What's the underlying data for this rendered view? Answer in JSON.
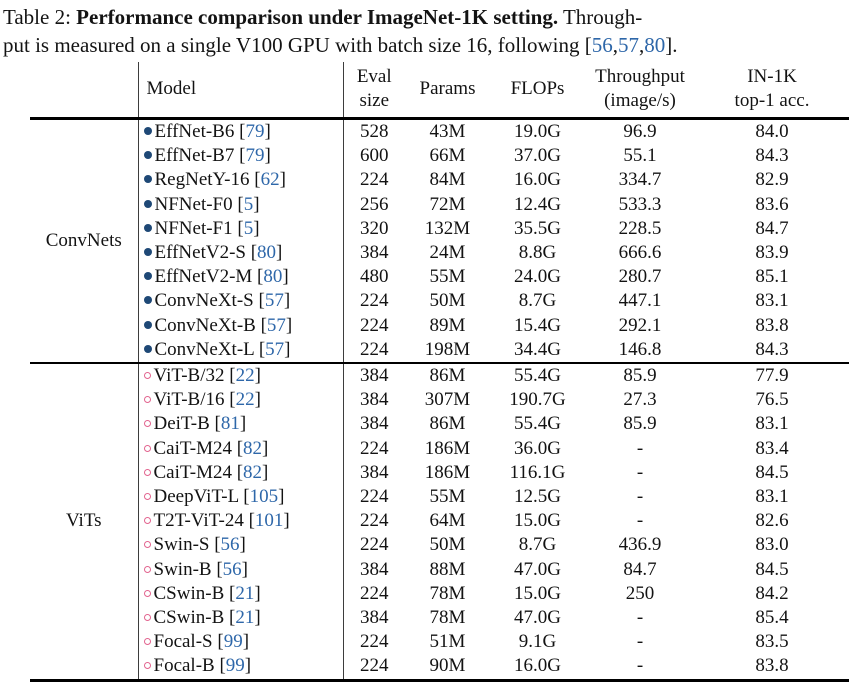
{
  "colors": {
    "citation_blue": "#2e67a9",
    "convnet_bullet": "#1e4876",
    "vit_circle": "#e2648f",
    "text": "#131313"
  },
  "caption": {
    "lines": [
      [
        {
          "t": "Table 2: ",
          "s": "normal"
        },
        {
          "t": "Performance comparison under ImageNet-1K setting.",
          "s": "bold"
        },
        {
          "t": " Through-",
          "s": "normal"
        }
      ],
      [
        {
          "t": "put is measured on a single V100 GPU with batch size 16, following ",
          "s": "normal"
        },
        {
          "t": "[",
          "s": "normal"
        },
        {
          "t": "56",
          "s": "cite"
        },
        {
          "t": ",",
          "s": "normal"
        },
        {
          "t": "57",
          "s": "cite"
        },
        {
          "t": ",",
          "s": "normal"
        },
        {
          "t": "80",
          "s": "cite"
        },
        {
          "t": "].",
          "s": "normal"
        }
      ]
    ]
  },
  "table": {
    "headers": {
      "group": [
        ""
      ],
      "model": [
        "Model"
      ],
      "eval": [
        "Eval",
        "size"
      ],
      "params": [
        "Params"
      ],
      "flops": [
        "FLOPs"
      ],
      "throughput": [
        "Throughput",
        "(image/s)"
      ],
      "acc": [
        "IN-1K",
        "top-1 acc."
      ]
    },
    "sections": [
      {
        "group": "ConvNets",
        "marker": "filled",
        "rows": [
          {
            "model": "EffNet-B6",
            "ref": "79",
            "eval": "528",
            "params": "43M",
            "flops": "19.0G",
            "throughput": "96.9",
            "acc": "84.0"
          },
          {
            "model": "EffNet-B7",
            "ref": "79",
            "eval": "600",
            "params": "66M",
            "flops": "37.0G",
            "throughput": "55.1",
            "acc": "84.3"
          },
          {
            "model": "RegNetY-16",
            "ref": "62",
            "eval": "224",
            "params": "84M",
            "flops": "16.0G",
            "throughput": "334.7",
            "acc": "82.9"
          },
          {
            "model": "NFNet-F0",
            "ref": "5",
            "eval": "256",
            "params": "72M",
            "flops": "12.4G",
            "throughput": "533.3",
            "acc": "83.6"
          },
          {
            "model": "NFNet-F1",
            "ref": "5",
            "eval": "320",
            "params": "132M",
            "flops": "35.5G",
            "throughput": "228.5",
            "acc": "84.7"
          },
          {
            "model": "EffNetV2-S",
            "ref": "80",
            "eval": "384",
            "params": "24M",
            "flops": "8.8G",
            "throughput": "666.6",
            "acc": "83.9"
          },
          {
            "model": "EffNetV2-M",
            "ref": "80",
            "eval": "480",
            "params": "55M",
            "flops": "24.0G",
            "throughput": "280.7",
            "acc": "85.1"
          },
          {
            "model": "ConvNeXt-S",
            "ref": "57",
            "eval": "224",
            "params": "50M",
            "flops": "8.7G",
            "throughput": "447.1",
            "acc": "83.1"
          },
          {
            "model": "ConvNeXt-B",
            "ref": "57",
            "eval": "224",
            "params": "89M",
            "flops": "15.4G",
            "throughput": "292.1",
            "acc": "83.8"
          },
          {
            "model": "ConvNeXt-L",
            "ref": "57",
            "eval": "224",
            "params": "198M",
            "flops": "34.4G",
            "throughput": "146.8",
            "acc": "84.3"
          }
        ]
      },
      {
        "group": "ViTs",
        "marker": "open",
        "rows": [
          {
            "model": "ViT-B/32",
            "ref": "22",
            "eval": "384",
            "params": "86M",
            "flops": "55.4G",
            "throughput": "85.9",
            "acc": "77.9"
          },
          {
            "model": "ViT-B/16",
            "ref": "22",
            "eval": "384",
            "params": "307M",
            "flops": "190.7G",
            "throughput": "27.3",
            "acc": "76.5"
          },
          {
            "model": "DeiT-B",
            "ref": "81",
            "eval": "384",
            "params": "86M",
            "flops": "55.4G",
            "throughput": "85.9",
            "acc": "83.1"
          },
          {
            "model": "CaiT-M24",
            "ref": "82",
            "eval": "224",
            "params": "186M",
            "flops": "36.0G",
            "throughput": "-",
            "acc": "83.4"
          },
          {
            "model": "CaiT-M24",
            "ref": "82",
            "eval": "384",
            "params": "186M",
            "flops": "116.1G",
            "throughput": "-",
            "acc": "84.5"
          },
          {
            "model": "DeepViT-L",
            "ref": "105",
            "eval": "224",
            "params": "55M",
            "flops": "12.5G",
            "throughput": "-",
            "acc": "83.1"
          },
          {
            "model": "T2T-ViT-24",
            "ref": "101",
            "eval": "224",
            "params": "64M",
            "flops": "15.0G",
            "throughput": "-",
            "acc": "82.6"
          },
          {
            "model": "Swin-S",
            "ref": "56",
            "eval": "224",
            "params": "50M",
            "flops": "8.7G",
            "throughput": "436.9",
            "acc": "83.0"
          },
          {
            "model": "Swin-B",
            "ref": "56",
            "eval": "384",
            "params": "88M",
            "flops": "47.0G",
            "throughput": "84.7",
            "acc": "84.5"
          },
          {
            "model": "CSwin-B",
            "ref": "21",
            "eval": "224",
            "params": "78M",
            "flops": "15.0G",
            "throughput": "250",
            "acc": "84.2"
          },
          {
            "model": "CSwin-B",
            "ref": "21",
            "eval": "384",
            "params": "78M",
            "flops": "47.0G",
            "throughput": "-",
            "acc": "85.4"
          },
          {
            "model": "Focal-S",
            "ref": "99",
            "eval": "224",
            "params": "51M",
            "flops": "9.1G",
            "throughput": "-",
            "acc": "83.5"
          },
          {
            "model": "Focal-B",
            "ref": "99",
            "eval": "224",
            "params": "90M",
            "flops": "16.0G",
            "throughput": "-",
            "acc": "83.8"
          }
        ]
      }
    ]
  }
}
